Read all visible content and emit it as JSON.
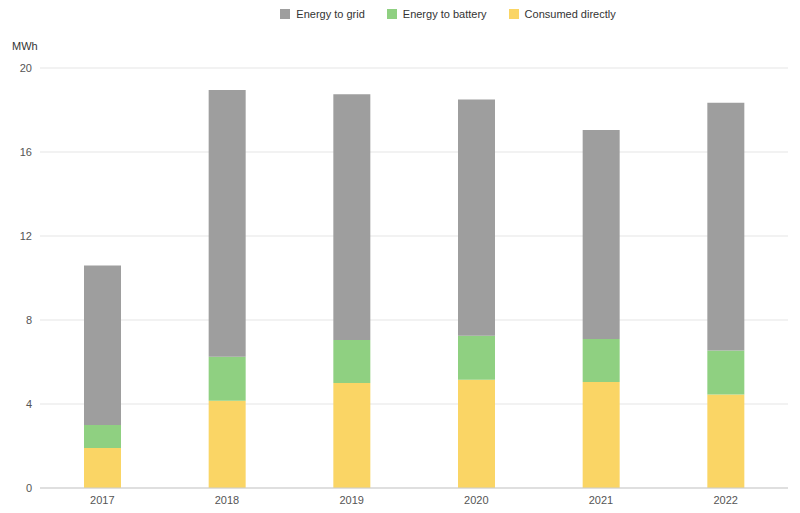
{
  "chart_data": {
    "type": "bar",
    "stacked": true,
    "y_label": "MWh",
    "categories": [
      "2017",
      "2018",
      "2019",
      "2020",
      "2021",
      "2022"
    ],
    "series": [
      {
        "name": "Consumed directly",
        "color": "#fad565",
        "values": [
          1.9,
          4.15,
          5.0,
          5.15,
          5.05,
          4.45
        ]
      },
      {
        "name": "Energy to battery",
        "color": "#8fd081",
        "values": [
          1.1,
          2.1,
          2.05,
          2.1,
          2.05,
          2.1
        ]
      },
      {
        "name": "Energy to grid",
        "color": "#9e9e9e",
        "values": [
          7.6,
          12.7,
          11.7,
          11.25,
          9.95,
          11.8
        ]
      }
    ],
    "ylim": [
      0,
      20
    ],
    "yticks": [
      0,
      4,
      8,
      12,
      16,
      20
    ],
    "grid": true,
    "legend": "top"
  }
}
